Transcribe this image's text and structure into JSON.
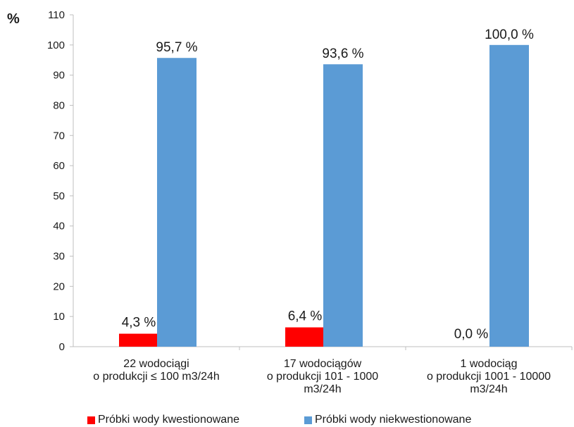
{
  "chart_data": {
    "type": "bar",
    "ylabel": "%",
    "ylim": [
      0,
      110
    ],
    "yticks": [
      "0",
      "10",
      "20",
      "30",
      "40",
      "50",
      "60",
      "70",
      "80",
      "90",
      "100",
      "110"
    ],
    "categories": [
      [
        "22 wodociągi",
        "o produkcji  ≤ 100 m3/24h"
      ],
      [
        "17 wodociągów",
        "o produkcji 101 - 1000",
        "m3/24h"
      ],
      [
        "1 wodociąg",
        "o produkcji 1001 - 10000",
        "m3/24h"
      ]
    ],
    "series": [
      {
        "name": "Próbki wody kwestionowane",
        "color": "#ff0000",
        "values": [
          4.3,
          6.4,
          0.0
        ],
        "labels": [
          "4,3 %",
          "6,4 %",
          "0,0 %"
        ]
      },
      {
        "name": "Próbki wody niekwestionowane",
        "color": "#5b9bd5",
        "values": [
          95.7,
          93.6,
          100.0
        ],
        "labels": [
          "95,7 %",
          "93,6 %",
          "100,0 %"
        ]
      }
    ],
    "grid": false,
    "legend_position": "bottom"
  }
}
